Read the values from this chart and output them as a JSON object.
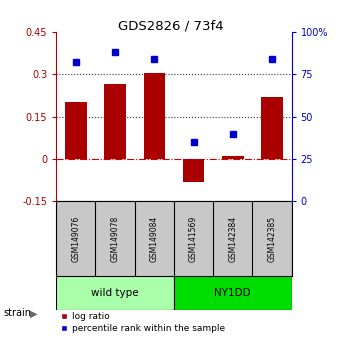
{
  "title": "GDS2826 / 73f4",
  "samples": [
    "GSM149076",
    "GSM149078",
    "GSM149084",
    "GSM141569",
    "GSM142384",
    "GSM142385"
  ],
  "log_ratio": [
    0.2,
    0.265,
    0.305,
    -0.08,
    0.01,
    0.22
  ],
  "percentile_rank": [
    82,
    88,
    84,
    35,
    40,
    84
  ],
  "groups": [
    {
      "name": "wild type",
      "indices": [
        0,
        1,
        2
      ],
      "color": "#AAFFAA"
    },
    {
      "name": "NY1DD",
      "indices": [
        3,
        4,
        5
      ],
      "color": "#00DD00"
    }
  ],
  "bar_color": "#AA0000",
  "dot_color": "#0000CC",
  "ylim_left": [
    -0.15,
    0.45
  ],
  "ylim_right": [
    0,
    100
  ],
  "yticks_left": [
    -0.15,
    0.0,
    0.15,
    0.3,
    0.45
  ],
  "yticks_right": [
    0,
    25,
    50,
    75,
    100
  ],
  "hlines": [
    0.0,
    0.15,
    0.3
  ],
  "hline_styles": [
    "dashdot",
    "dotted",
    "dotted"
  ],
  "hline_colors": [
    "#CC0000",
    "#333333",
    "#333333"
  ],
  "background_color": "#ffffff"
}
